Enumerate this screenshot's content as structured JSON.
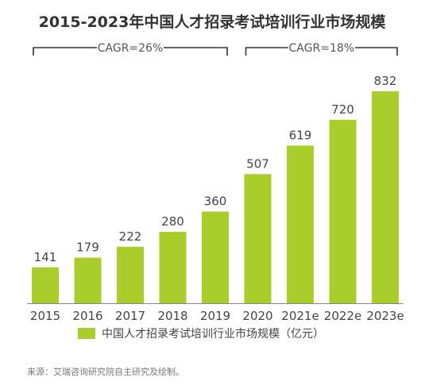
{
  "chart_data": {
    "type": "bar",
    "title": "2015-2023年中国人才招录考试培训行业市场规模",
    "categories": [
      "2015",
      "2016",
      "2017",
      "2018",
      "2019",
      "2020",
      "2021e",
      "2022e",
      "2023e"
    ],
    "series": [
      {
        "name": "中国人才招录考试培训行业市场规模（亿元）",
        "values": [
          141,
          179,
          222,
          280,
          360,
          507,
          619,
          720,
          832
        ],
        "color": "#a9cd2b"
      }
    ],
    "ylim": [
      0,
      832
    ],
    "grid": false,
    "legend_position": "bottom",
    "annotations": [
      {
        "label": "CAGR=26%",
        "from": "2015",
        "to": "2019"
      },
      {
        "label": "CAGR=18%",
        "from": "2020",
        "to": "2023e"
      }
    ],
    "axis_color": "#888888",
    "bracket_color": "#333333"
  },
  "source": "来源：艾瑞咨询研究院自主研究及绘制。"
}
